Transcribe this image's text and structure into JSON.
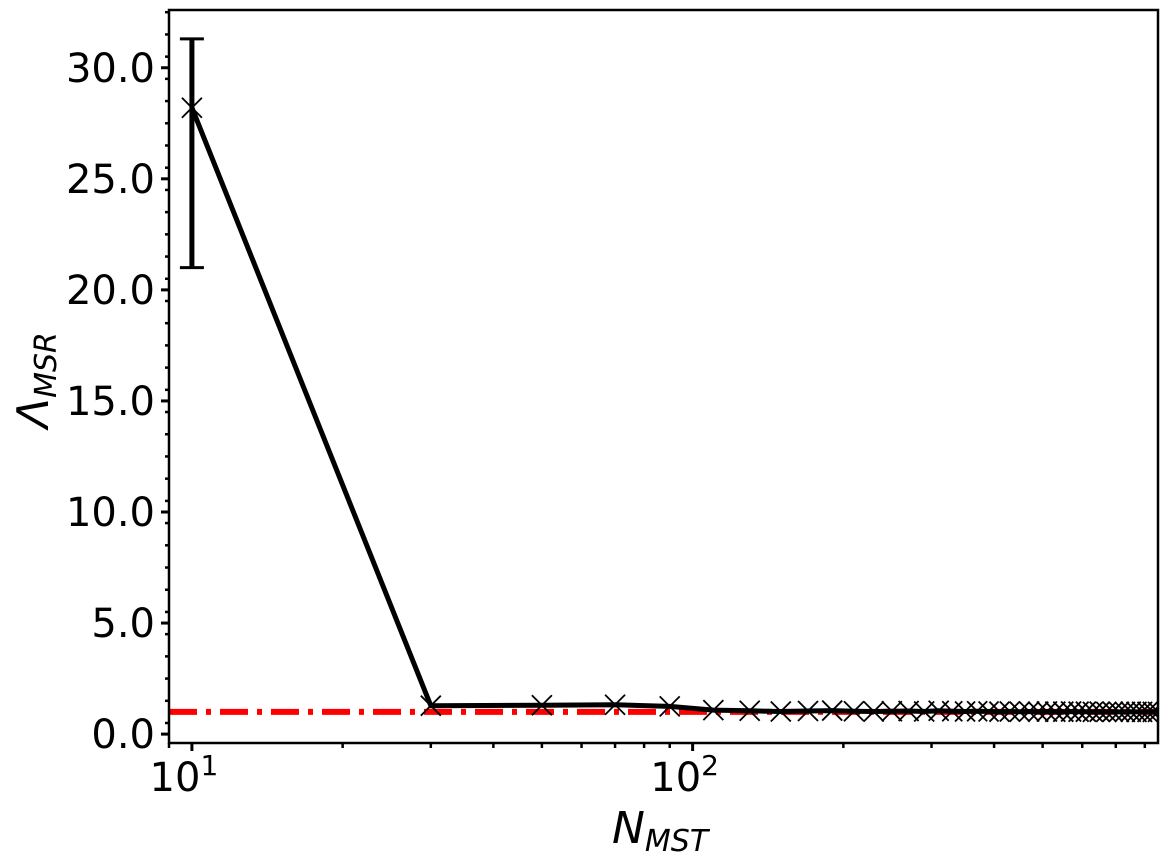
{
  "chart_data": {
    "type": "line",
    "title": "",
    "xlabel_main": "N",
    "xlabel_sub": "MST",
    "ylabel_main": "Λ",
    "ylabel_sub": "MSR",
    "xscale": "log",
    "xlim": [
      9,
      850
    ],
    "ylim": [
      -0.4,
      32.6
    ],
    "grid": false,
    "x_ticks": [
      {
        "value": 10,
        "base": "10",
        "exp": "1"
      },
      {
        "value": 100,
        "base": "10",
        "exp": "2"
      }
    ],
    "y_ticks": [
      {
        "value": 0,
        "label": "0.0"
      },
      {
        "value": 5,
        "label": "5.0"
      },
      {
        "value": 10,
        "label": "10.0"
      },
      {
        "value": 15,
        "label": "15.0"
      },
      {
        "value": 20,
        "label": "20.0"
      },
      {
        "value": 25,
        "label": "25.0"
      },
      {
        "value": 30,
        "label": "30.0"
      }
    ],
    "series": [
      {
        "color": "#000000",
        "marker": "x",
        "x": [
          10,
          30,
          50,
          70,
          90,
          110,
          130,
          150,
          170,
          190,
          210,
          230,
          250,
          270,
          290,
          310,
          330,
          350,
          370,
          390,
          410,
          430,
          450,
          470,
          490,
          510,
          530,
          550,
          570,
          590,
          610,
          630,
          650,
          670,
          690,
          710,
          730,
          750,
          770,
          790,
          810,
          830,
          850
        ],
        "y": [
          28.2,
          1.28,
          1.3,
          1.32,
          1.25,
          1.08,
          1.05,
          1.02,
          1.04,
          1.06,
          1.03,
          1.02,
          1.03,
          1.04,
          1.02,
          1.05,
          1.03,
          1.02,
          1.03,
          1.02,
          1.01,
          1.02,
          1.01,
          1.02,
          1.01,
          1.02,
          1.01,
          1.01,
          1.02,
          1.01,
          1.01,
          1.0,
          1.01,
          1.0,
          1.01,
          1.0,
          1.0,
          1.01,
          1.0,
          1.0,
          1.0,
          1.0,
          1.0
        ],
        "error_bars": [
          {
            "x": 10,
            "low": 21.0,
            "high": 31.3
          }
        ]
      }
    ],
    "reference_line": {
      "y": 1.0,
      "color": "#ff0000",
      "style": "dash-dot"
    }
  }
}
